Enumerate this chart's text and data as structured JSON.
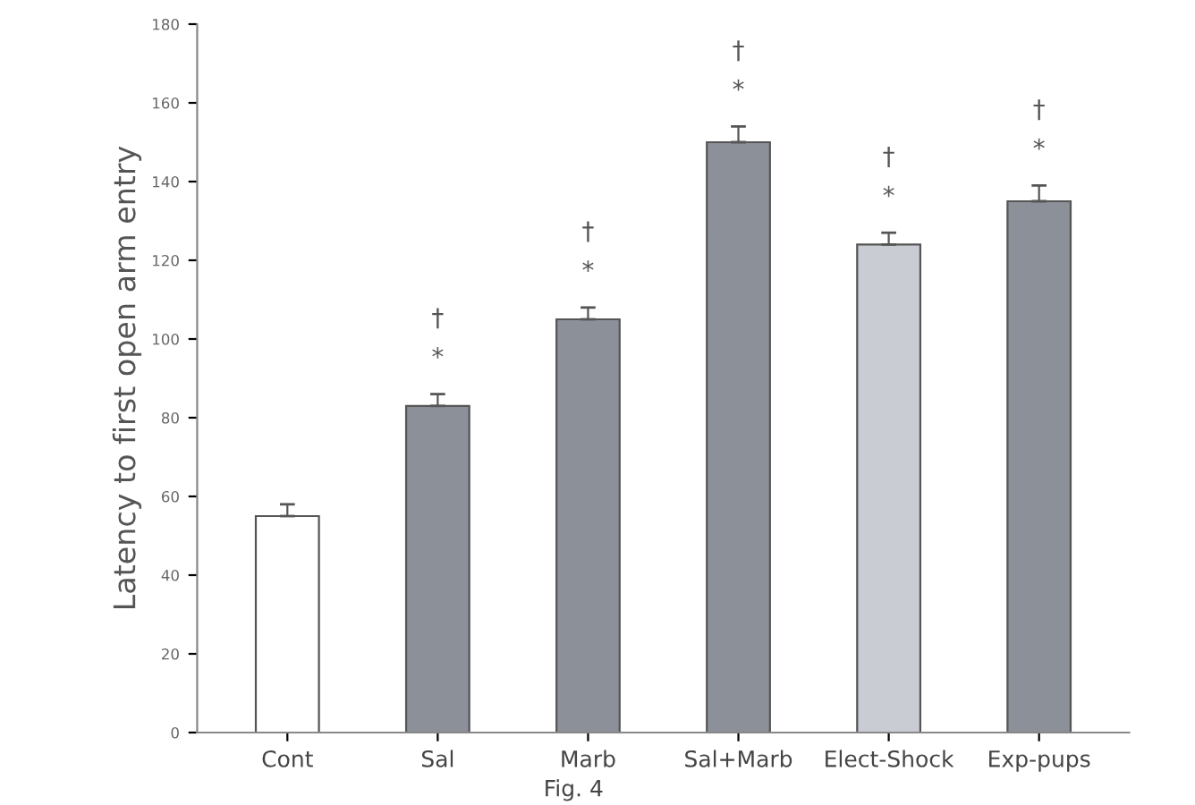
{
  "chart_data": {
    "type": "bar",
    "ylabel": "Latency to first open arm entry",
    "categories": [
      "Cont",
      "Sal",
      "Marb",
      "Sal+Marb",
      "Elect-Shock",
      "Exp-pups"
    ],
    "values": [
      55,
      83,
      105,
      150,
      124,
      135
    ],
    "errors": [
      3,
      3,
      3,
      4,
      3,
      4
    ],
    "colors": [
      "#ffffff",
      "#8c9099",
      "#8c9099",
      "#8c9099",
      "#c9ccd3",
      "#8c9099"
    ],
    "ylim": [
      0,
      180
    ],
    "yticks": [
      0,
      20,
      40,
      60,
      80,
      100,
      120,
      140,
      160,
      180
    ],
    "grid": false,
    "annotations": [
      "*",
      "†",
      "*",
      "†",
      "*",
      "†",
      "*",
      "†",
      "*",
      "†",
      "Fig. 4"
    ]
  }
}
